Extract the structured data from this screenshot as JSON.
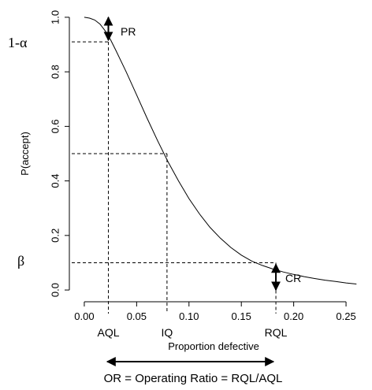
{
  "chart_data": {
    "type": "line",
    "xlabel": "Proportion defective",
    "ylabel": "P(accept)",
    "xlim": [
      -0.012,
      0.262
    ],
    "ylim": [
      -0.02,
      1.02
    ],
    "x_ticks": [
      0.0,
      0.05,
      0.1,
      0.15,
      0.2,
      0.25
    ],
    "x_tick_labels": [
      "0.00",
      "0.05",
      "0.10",
      "0.15",
      "0.20",
      "0.25"
    ],
    "y_ticks": [
      0.0,
      0.2,
      0.4,
      0.6,
      0.8,
      1.0
    ],
    "y_tick_labels": [
      "0.0",
      "0.2",
      "0.4",
      "0.6",
      "0.8",
      "1.0"
    ],
    "grid": false,
    "series": [
      {
        "x": [
          0.0,
          0.005,
          0.01,
          0.015,
          0.02,
          0.025,
          0.03,
          0.04,
          0.05,
          0.06,
          0.07,
          0.08,
          0.09,
          0.1,
          0.11,
          0.12,
          0.13,
          0.14,
          0.15,
          0.16,
          0.17,
          0.18,
          0.19,
          0.2,
          0.21,
          0.22,
          0.23,
          0.24,
          0.25,
          0.26
        ],
        "y": [
          1.0,
          0.997,
          0.99,
          0.975,
          0.95,
          0.918,
          0.88,
          0.8,
          0.715,
          0.63,
          0.548,
          0.47,
          0.4,
          0.335,
          0.279,
          0.23,
          0.19,
          0.156,
          0.128,
          0.106,
          0.09,
          0.077,
          0.066,
          0.057,
          0.049,
          0.042,
          0.036,
          0.031,
          0.026,
          0.022
        ]
      }
    ],
    "reference_points": {
      "AQL": {
        "label": "AQL",
        "x": 0.023,
        "y": 0.91,
        "y_label": "1-α"
      },
      "IQ": {
        "label": "IQ",
        "x": 0.079,
        "y": 0.5
      },
      "RQL": {
        "label": "RQL",
        "x": 0.183,
        "y": 0.1,
        "y_label": "β"
      }
    },
    "annotations": {
      "pr_label": "PR",
      "cr_label": "CR",
      "operating_ratio": "OR = Operating Ratio = RQL/AQL"
    }
  }
}
